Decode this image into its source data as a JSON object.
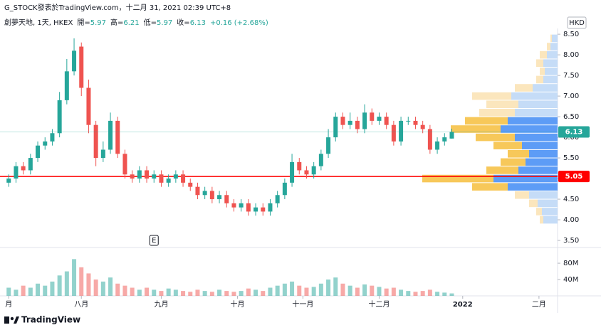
{
  "header": {
    "byline": "G_STOCK發表於TradingView.com，十二月 31, 2021 02:39 UTC+8",
    "symbol": "創夢天地, 1天, HKEX",
    "ohlc_labels": [
      "開=",
      "高=",
      "低=",
      "收="
    ],
    "ohlc_values": [
      5.97,
      6.21,
      5.97,
      6.13
    ],
    "change": "+0.16 (+2.68%)"
  },
  "chart_data": {
    "type": "candlestick",
    "currency": "HKD",
    "x": [
      0,
      1,
      2,
      3,
      4,
      5,
      6,
      7,
      8,
      9,
      10,
      11,
      12,
      13,
      14,
      15,
      16,
      17,
      18,
      19,
      20,
      21,
      22,
      23,
      24,
      25,
      26,
      27,
      28,
      29,
      30,
      31,
      32,
      33,
      34,
      35,
      36,
      37,
      38,
      39,
      40,
      41,
      42,
      43,
      44,
      45,
      46,
      47,
      48,
      49,
      50,
      51,
      52,
      53,
      54,
      55,
      56,
      57,
      58,
      59,
      60,
      61
    ],
    "xlim": [
      -1.2,
      75.56
    ],
    "xticks": [
      {
        "value": 0,
        "label": "月"
      },
      {
        "value": 10,
        "label": "八月"
      },
      {
        "value": 21,
        "label": "九月"
      },
      {
        "value": 31.5,
        "label": "十月"
      },
      {
        "value": 40.5,
        "label": "十一月"
      },
      {
        "value": 51,
        "label": "十二月"
      },
      {
        "value": 62.5,
        "label": "2022"
      },
      {
        "value": 73,
        "label": "二月"
      }
    ],
    "open": [
      4.9,
      5.0,
      5.3,
      5.2,
      5.5,
      5.8,
      5.9,
      6.1,
      6.9,
      7.6,
      8.2,
      7.2,
      6.3,
      5.5,
      5.7,
      6.4,
      5.6,
      5.1,
      5.0,
      5.2,
      5.0,
      5.1,
      4.9,
      5.0,
      5.1,
      4.9,
      4.8,
      4.6,
      4.7,
      4.5,
      4.6,
      4.4,
      4.3,
      4.4,
      4.2,
      4.3,
      4.2,
      4.4,
      4.6,
      4.9,
      5.4,
      5.2,
      5.1,
      5.3,
      5.6,
      6.0,
      6.5,
      6.3,
      6.4,
      6.2,
      6.6,
      6.4,
      6.5,
      6.3,
      5.9,
      6.4,
      6.4,
      6.3,
      6.2,
      5.7,
      5.9,
      5.97
    ],
    "high": [
      5.1,
      5.4,
      5.4,
      5.6,
      5.9,
      6.0,
      6.2,
      7.1,
      7.9,
      8.4,
      8.3,
      7.4,
      6.4,
      5.9,
      6.6,
      6.5,
      5.7,
      5.2,
      5.3,
      5.3,
      5.2,
      5.2,
      5.1,
      5.2,
      5.2,
      5.0,
      4.9,
      4.8,
      4.8,
      4.7,
      4.7,
      4.5,
      4.5,
      4.5,
      4.4,
      4.4,
      4.5,
      4.7,
      5.0,
      5.6,
      5.5,
      5.3,
      5.4,
      5.7,
      6.2,
      6.6,
      6.6,
      6.6,
      6.5,
      6.8,
      6.7,
      6.6,
      6.6,
      6.4,
      6.5,
      6.5,
      6.5,
      6.4,
      6.3,
      6.0,
      6.1,
      6.21
    ],
    "low": [
      4.8,
      4.9,
      5.1,
      5.1,
      5.4,
      5.7,
      5.8,
      6.0,
      6.8,
      7.5,
      7.0,
      6.1,
      5.3,
      5.4,
      5.6,
      5.5,
      5.0,
      4.9,
      4.9,
      4.9,
      4.9,
      4.8,
      4.8,
      4.9,
      4.8,
      4.7,
      4.5,
      4.5,
      4.4,
      4.4,
      4.3,
      4.2,
      4.2,
      4.1,
      4.1,
      4.1,
      4.1,
      4.3,
      4.5,
      4.8,
      5.1,
      5.0,
      5.0,
      5.2,
      5.5,
      5.9,
      6.2,
      6.2,
      6.1,
      6.1,
      6.3,
      6.3,
      6.2,
      5.8,
      5.8,
      6.3,
      6.2,
      6.1,
      5.6,
      5.6,
      5.8,
      5.97
    ],
    "close": [
      5.0,
      5.3,
      5.2,
      5.5,
      5.8,
      5.9,
      6.1,
      6.9,
      7.6,
      8.1,
      7.2,
      6.3,
      5.5,
      5.7,
      6.4,
      5.6,
      5.1,
      5.0,
      5.2,
      5.0,
      5.1,
      4.9,
      5.0,
      5.1,
      4.9,
      4.8,
      4.6,
      4.7,
      4.5,
      4.6,
      4.4,
      4.3,
      4.4,
      4.2,
      4.3,
      4.2,
      4.4,
      4.6,
      4.9,
      5.4,
      5.2,
      5.1,
      5.3,
      5.6,
      6.0,
      6.5,
      6.3,
      6.4,
      6.2,
      6.6,
      6.4,
      6.5,
      6.3,
      5.9,
      6.4,
      6.4,
      6.3,
      6.2,
      5.7,
      5.9,
      6.0,
      6.13
    ],
    "up_color": "#26a69a",
    "down_color": "#ef5350",
    "ylim": [
      3.38,
      8.64
    ],
    "yticks": [
      {
        "value": 3.5,
        "label": "3.50"
      },
      {
        "value": 4,
        "label": "4.00"
      },
      {
        "value": 4.5,
        "label": "4.50"
      },
      {
        "value": 5,
        "label": "5.00"
      },
      {
        "value": 5.5,
        "label": "5.50"
      },
      {
        "value": 6,
        "label": "6.00"
      },
      {
        "value": 6.5,
        "label": "6.50"
      },
      {
        "value": 7,
        "label": "7.00"
      },
      {
        "value": 7.5,
        "label": "7.50"
      },
      {
        "value": 8,
        "label": "8.00"
      },
      {
        "value": 8.5,
        "label": "8.50"
      }
    ],
    "hline": {
      "value": 5.05,
      "color": "#ff0000"
    },
    "event_marker": {
      "x": 20,
      "label": "E"
    },
    "volume": [
      20000000,
      15000000,
      25000000,
      20000000,
      30000000,
      25000000,
      35000000,
      50000000,
      60000000,
      90000000,
      70000000,
      55000000,
      40000000,
      35000000,
      45000000,
      30000000,
      25000000,
      20000000,
      15000000,
      20000000,
      15000000,
      12000000,
      18000000,
      15000000,
      12000000,
      10000000,
      15000000,
      12000000,
      10000000,
      15000000,
      12000000,
      10000000,
      12000000,
      18000000,
      15000000,
      12000000,
      20000000,
      25000000,
      30000000,
      35000000,
      25000000,
      20000000,
      22000000,
      30000000,
      40000000,
      45000000,
      30000000,
      25000000,
      20000000,
      28000000,
      25000000,
      22000000,
      18000000,
      20000000,
      15000000,
      12000000,
      10000000,
      12000000,
      15000000,
      10000000,
      8000000,
      6000000
    ],
    "volume_ylim": [
      0,
      115000000
    ],
    "volume_yticks": [
      {
        "value": 40000000,
        "label": "40M"
      },
      {
        "value": 80000000,
        "label": "80M"
      }
    ],
    "volume_profile": {
      "bins": [
        3.9,
        4.1,
        4.3,
        4.5,
        4.7,
        4.9,
        5.1,
        5.3,
        5.5,
        5.7,
        5.9,
        6.1,
        6.3,
        6.5,
        6.7,
        6.9,
        7.1,
        7.3,
        7.5,
        7.7,
        7.9,
        8.1,
        8.3,
        8.5
      ],
      "up": [
        20,
        22,
        28,
        40,
        70,
        90,
        55,
        45,
        40,
        50,
        60,
        80,
        70,
        60,
        55,
        65,
        35,
        20,
        18,
        20,
        15,
        10,
        8
      ],
      "down": [
        5,
        8,
        12,
        20,
        50,
        100,
        45,
        35,
        30,
        40,
        55,
        70,
        60,
        50,
        45,
        55,
        25,
        10,
        7,
        10,
        10,
        5,
        2
      ],
      "value_area": [
        4.7,
        6.5
      ],
      "up_color": "#5d9cf6",
      "down_color": "#f7c85a",
      "up_pale": "#c5dcf7",
      "down_pale": "#fbe6bd"
    }
  },
  "footer": {
    "brand": "TradingView"
  }
}
